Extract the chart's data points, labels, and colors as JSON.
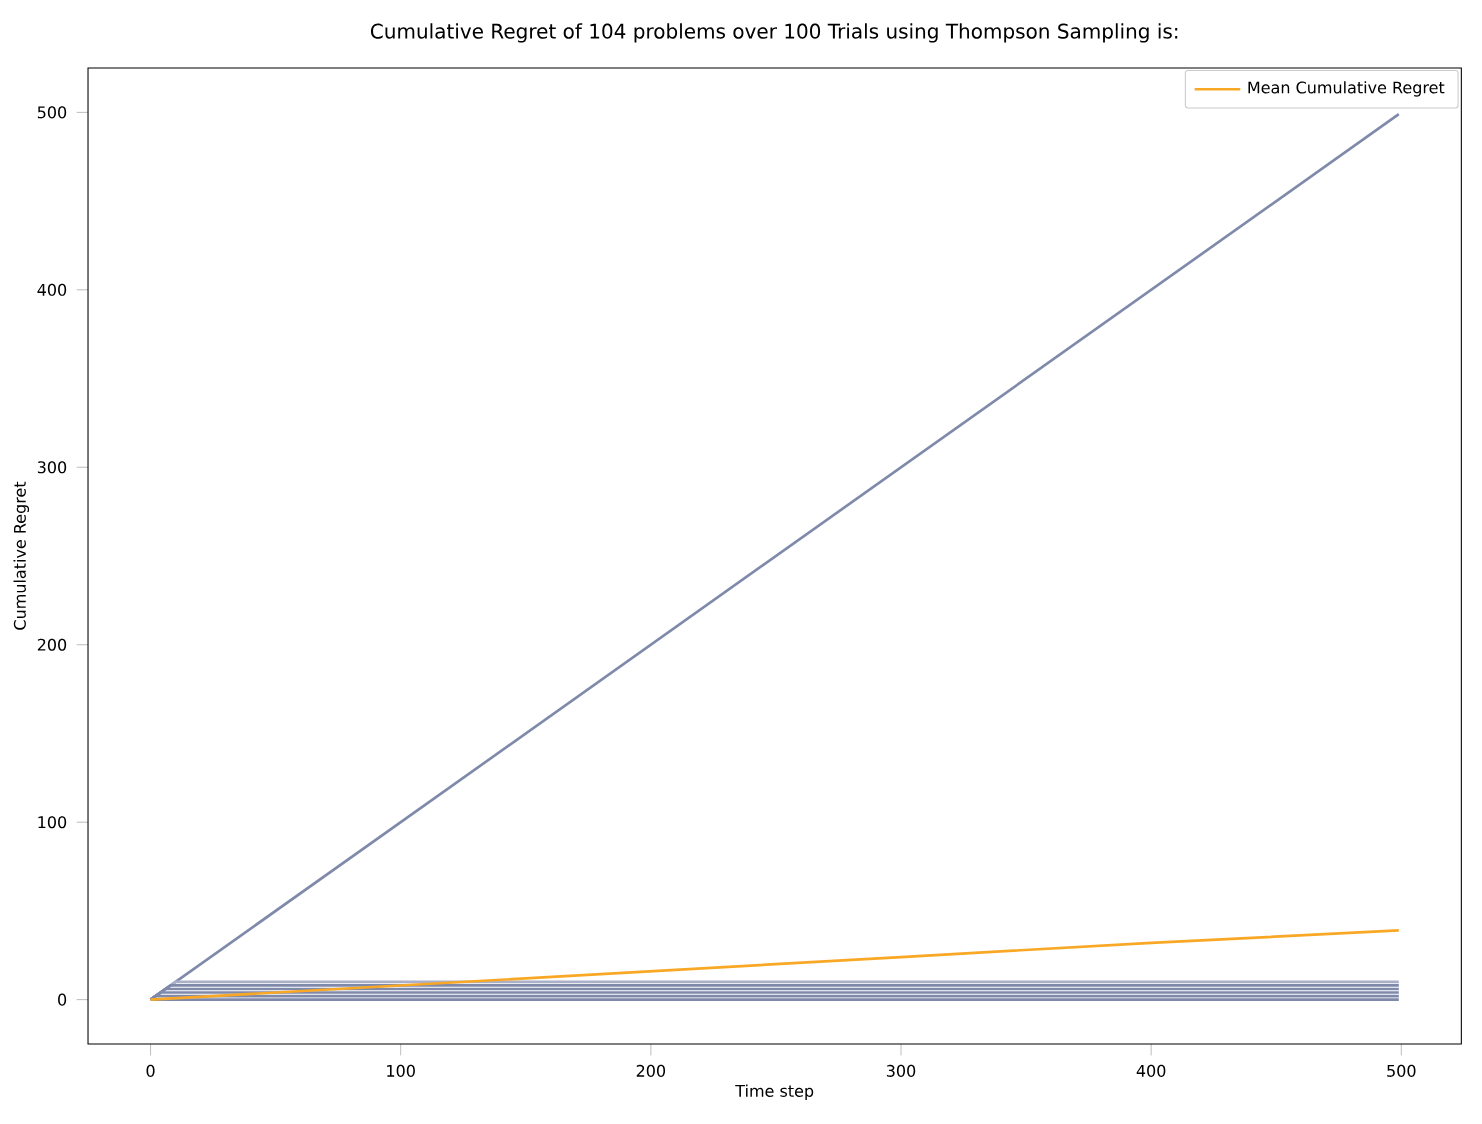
{
  "chart_data": {
    "type": "line",
    "title": "Cumulative Regret of 104 problems over 100 Trials using Thompson Sampling is:",
    "xlabel": "Time step",
    "ylabel": "Cumulative Regret",
    "xlim": [
      -25,
      524
    ],
    "ylim": [
      -25,
      525
    ],
    "xticks": [
      0,
      100,
      200,
      300,
      400,
      500
    ],
    "yticks": [
      0,
      100,
      200,
      300,
      400,
      500
    ],
    "legend": "top right",
    "marker": "none",
    "line_style": "solid",
    "series": [
      {
        "color": "#7f8aab",
        "x": [
          0,
          499
        ],
        "values": [
          0,
          499
        ]
      },
      {
        "color": "#a9b0c8",
        "x": [
          0,
          10,
          499
        ],
        "values": [
          0,
          10,
          10
        ]
      },
      {
        "color": "#7f8aab",
        "x": [
          0,
          8,
          499
        ],
        "values": [
          0,
          8,
          8
        ]
      },
      {
        "color": "#7f8aab",
        "x": [
          0,
          6,
          499
        ],
        "values": [
          0,
          6,
          6
        ]
      },
      {
        "color": "#7f8aab",
        "x": [
          0,
          4,
          499
        ],
        "values": [
          0,
          4,
          4
        ]
      },
      {
        "color": "#7f8aab",
        "x": [
          0,
          2,
          499
        ],
        "values": [
          0,
          2,
          2
        ]
      },
      {
        "color": "#7f8aab",
        "x": [
          0,
          499
        ],
        "values": [
          0,
          0
        ]
      },
      {
        "name": "Mean Cumulative Regret",
        "color": "#f9a825",
        "x": [
          0,
          100,
          200,
          300,
          400,
          499
        ],
        "values": [
          0,
          8,
          16,
          24,
          32,
          39
        ]
      }
    ]
  }
}
